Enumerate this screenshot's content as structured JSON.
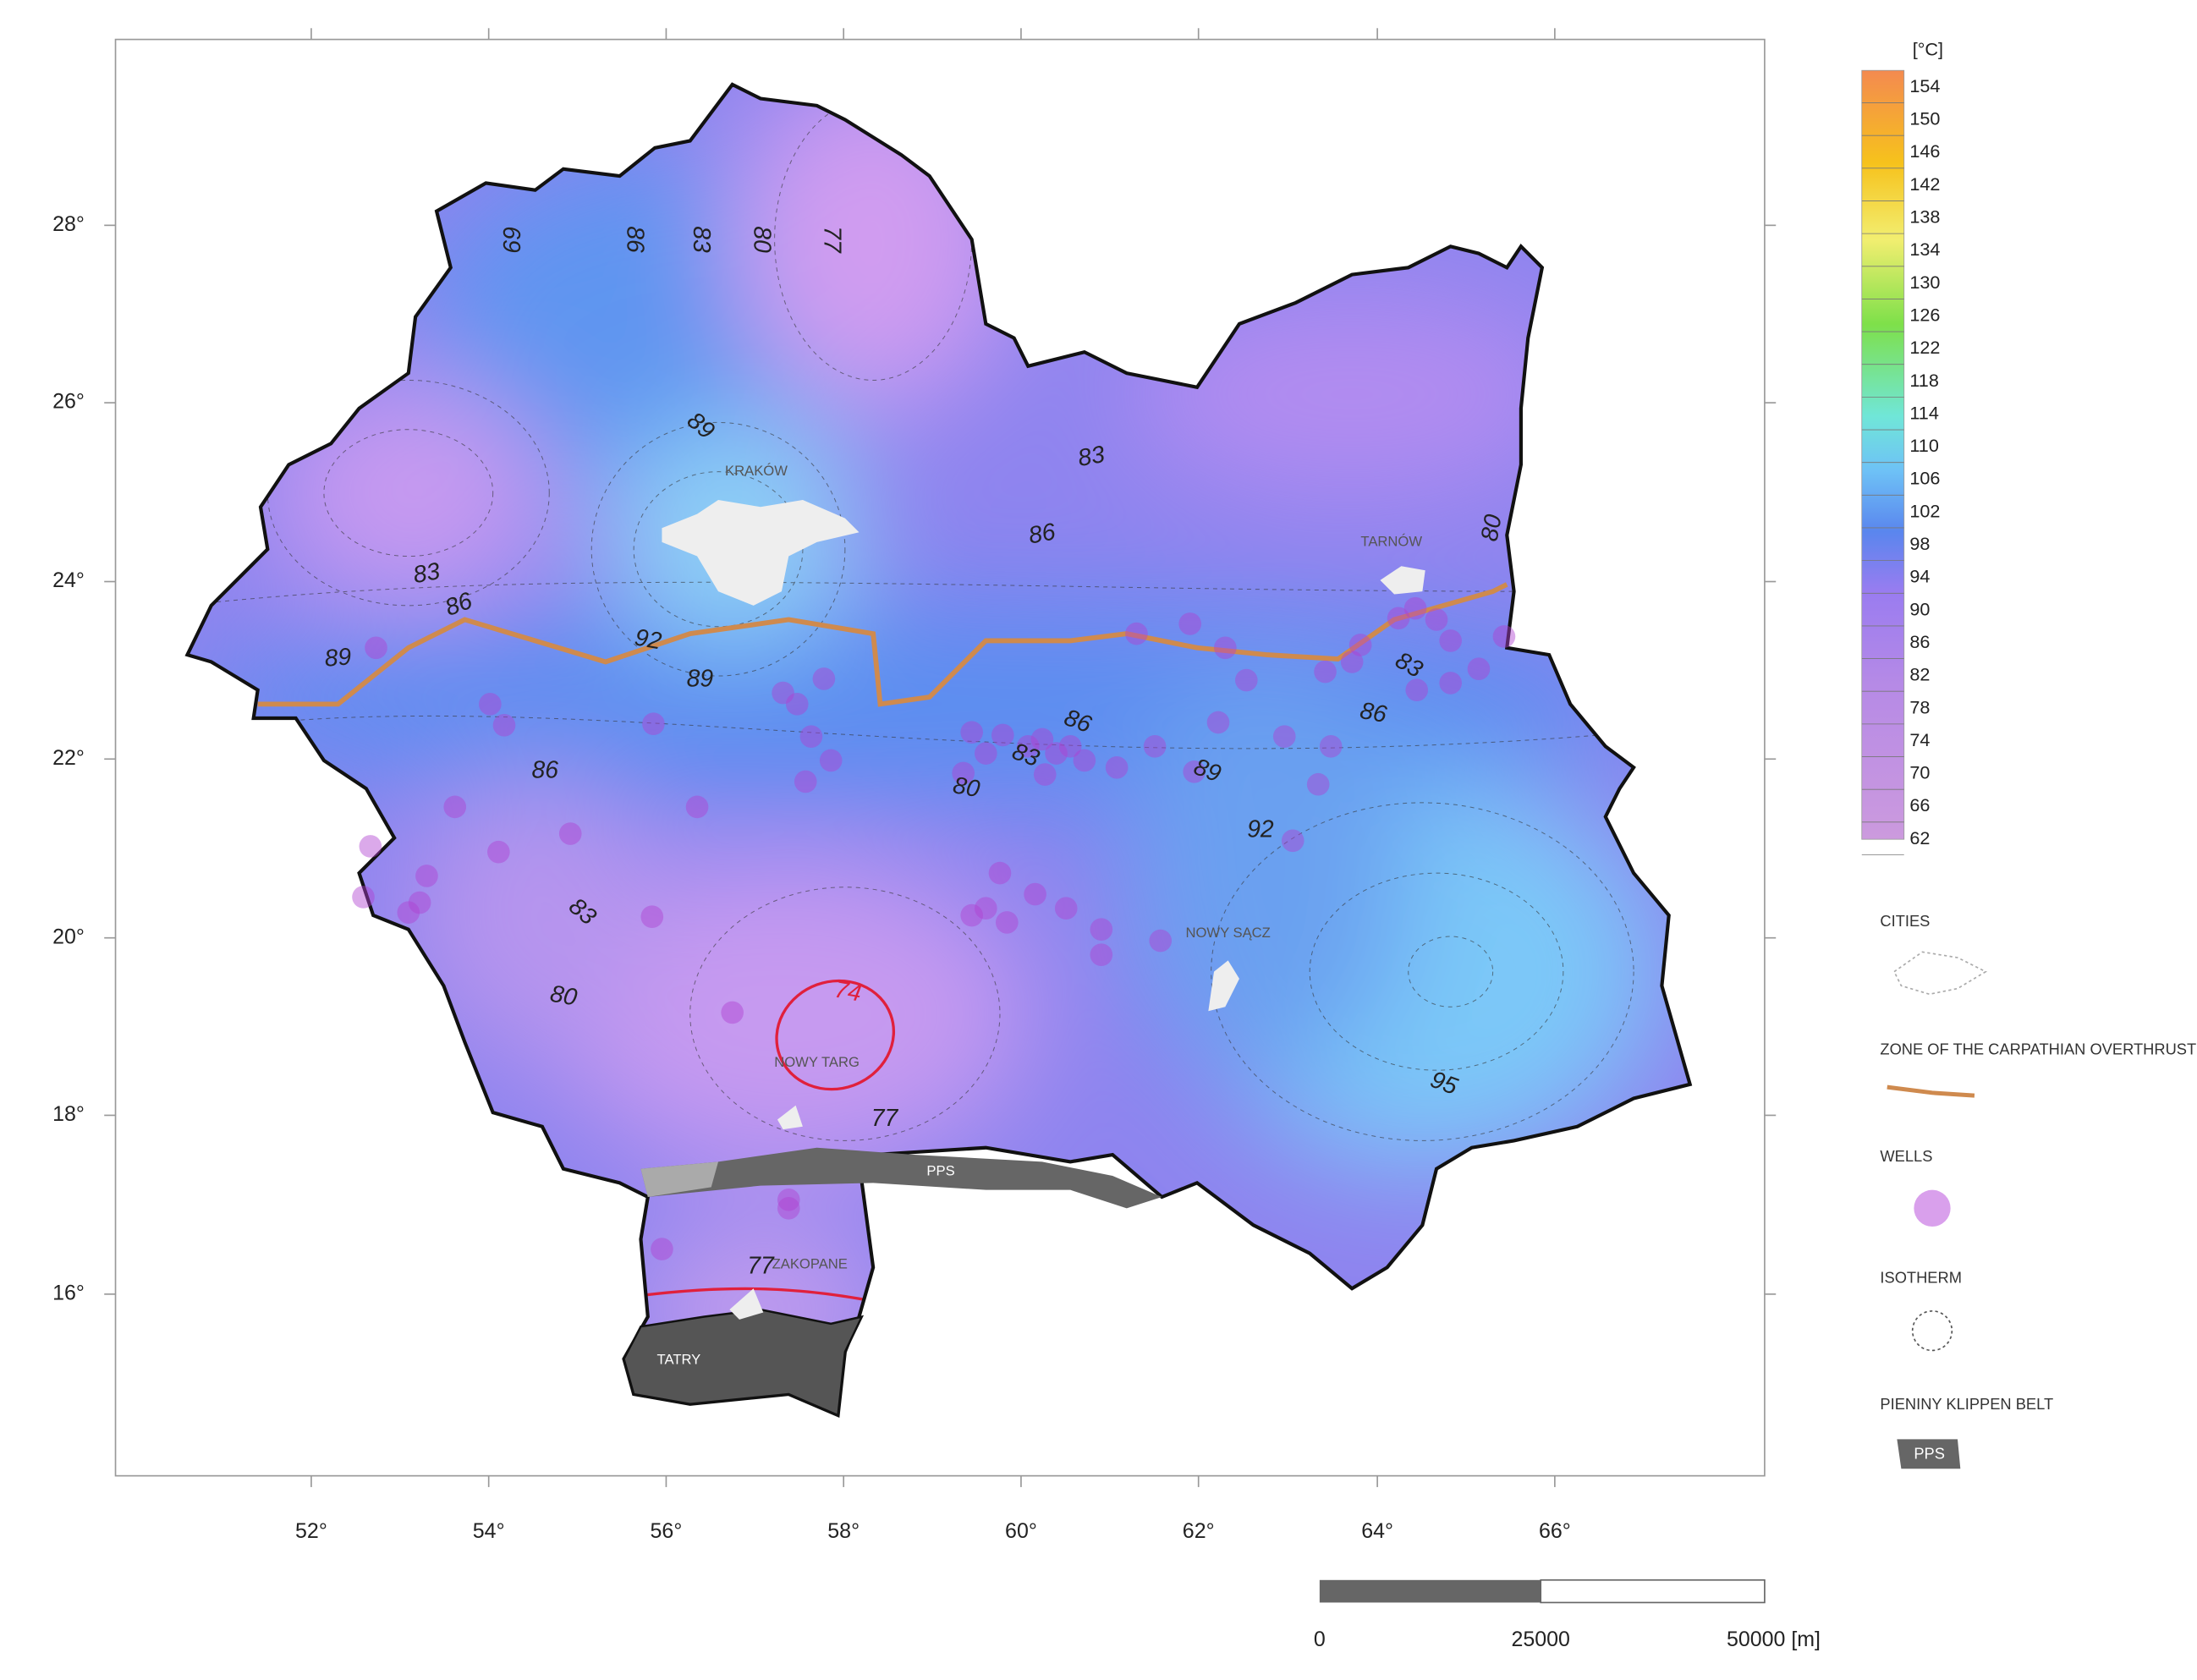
{
  "map": {
    "x_ticks": [
      "52°",
      "54°",
      "56°",
      "58°",
      "60°",
      "62°",
      "64°",
      "66°"
    ],
    "y_ticks": [
      "28°",
      "26°",
      "24°",
      "22°",
      "20°",
      "18°",
      "16°"
    ],
    "colorbar": {
      "unit": "[°C]",
      "labels": [
        154,
        150,
        146,
        142,
        138,
        134,
        130,
        126,
        122,
        118,
        114,
        110,
        106,
        102,
        98,
        94,
        90,
        86,
        82,
        78,
        74,
        70,
        66,
        62
      ]
    },
    "isotherm_labels": [
      69,
      86,
      83,
      80,
      77,
      89,
      83,
      86,
      80,
      83,
      86,
      89,
      92,
      89,
      86,
      86,
      83,
      80,
      89,
      86,
      83,
      92,
      83,
      80,
      74,
      77,
      95,
      77
    ],
    "places": [
      "KRAKÓW",
      "TARNÓW",
      "NOWY SĄCZ",
      "NOWY TARG",
      "ZAKOPANE",
      "PPS",
      "TATRY"
    ],
    "legend": {
      "cities": "CITIES",
      "overthrust": "ZONE OF THE CARPATHIAN OVERTHRUST",
      "wells": "WELLS",
      "isotherm": "ISOTHERM",
      "klippen": "PIENINY KLIPPEN BELT",
      "pps": "PPS"
    },
    "scale_bar": {
      "labels": [
        0,
        25000,
        "50000 [m]"
      ]
    }
  }
}
